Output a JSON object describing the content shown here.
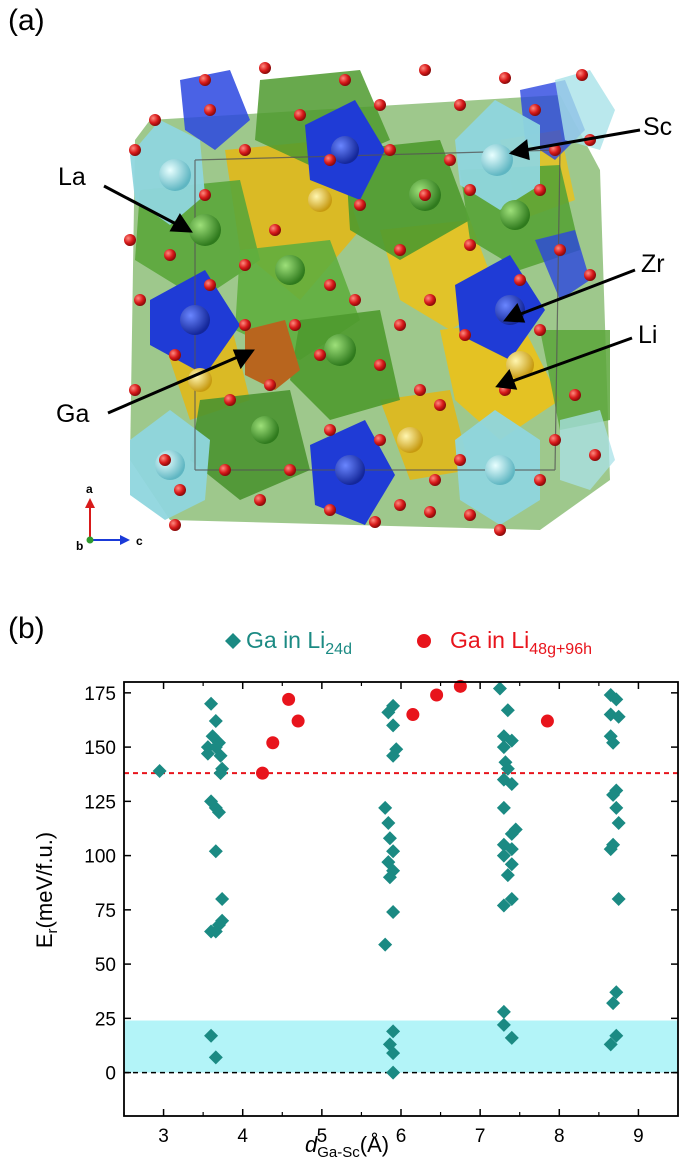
{
  "panel_a": {
    "label": "(a)",
    "atoms": {
      "la": "La",
      "sc": "Sc",
      "zr": "Zr",
      "li": "Li",
      "ga": "Ga"
    },
    "axes": {
      "a": "a",
      "b": "b",
      "c": "c"
    },
    "colors": {
      "la": "#4e9a2e",
      "sc": "#8fd6de",
      "zr": "#1f3bd6",
      "li": "#e8c21e",
      "ga": "#b8651e",
      "o": "#d81a1a"
    }
  },
  "panel_b": {
    "label": "(b)"
  },
  "chart_data": {
    "type": "scatter",
    "xlabel_main": "d",
    "xlabel_sub": "Ga-Sc",
    "xlabel_unit": "(Å)",
    "ylabel_main": "E",
    "ylabel_sub": "r",
    "ylabel_unit": "(meV/f.u.)",
    "xlim": [
      2.5,
      9.5
    ],
    "ylim": [
      -20,
      180
    ],
    "xticks": [
      3,
      4,
      5,
      6,
      7,
      8,
      9
    ],
    "yticks": [
      0,
      25,
      50,
      75,
      100,
      125,
      150,
      175
    ],
    "legend_position": "top",
    "reference_line_red": 138,
    "reference_line_black": 0,
    "shaded_band": [
      0,
      24
    ],
    "series": [
      {
        "name": "Ga in Li",
        "name_sub": "24d",
        "marker": "diamond",
        "color": "#1b8a83",
        "points": [
          [
            3.6,
            170
          ],
          [
            3.66,
            162
          ],
          [
            3.62,
            155
          ],
          [
            3.7,
            152
          ],
          [
            3.56,
            150
          ],
          [
            3.66,
            150
          ],
          [
            3.56,
            147
          ],
          [
            3.72,
            146
          ],
          [
            3.74,
            140
          ],
          [
            3.72,
            138
          ],
          [
            3.6,
            125
          ],
          [
            3.66,
            122
          ],
          [
            3.7,
            120
          ],
          [
            3.66,
            102
          ],
          [
            3.74,
            80
          ],
          [
            3.74,
            70
          ],
          [
            3.7,
            68
          ],
          [
            3.6,
            65
          ],
          [
            3.66,
            65
          ],
          [
            3.6,
            17
          ],
          [
            3.66,
            7
          ],
          [
            5.9,
            169
          ],
          [
            5.84,
            166
          ],
          [
            5.9,
            160
          ],
          [
            5.94,
            149
          ],
          [
            5.9,
            146
          ],
          [
            5.8,
            122
          ],
          [
            5.84,
            115
          ],
          [
            5.86,
            108
          ],
          [
            5.9,
            102
          ],
          [
            5.84,
            97
          ],
          [
            5.9,
            93
          ],
          [
            5.86,
            90
          ],
          [
            5.9,
            74
          ],
          [
            5.8,
            59
          ],
          [
            5.9,
            19
          ],
          [
            5.86,
            13
          ],
          [
            5.9,
            9
          ],
          [
            5.9,
            0
          ],
          [
            7.25,
            177
          ],
          [
            7.35,
            167
          ],
          [
            7.3,
            155
          ],
          [
            7.4,
            153
          ],
          [
            7.3,
            150
          ],
          [
            7.32,
            143
          ],
          [
            7.35,
            140
          ],
          [
            7.3,
            135
          ],
          [
            7.4,
            133
          ],
          [
            7.3,
            122
          ],
          [
            7.45,
            112
          ],
          [
            7.4,
            110
          ],
          [
            7.3,
            105
          ],
          [
            7.4,
            103
          ],
          [
            7.3,
            100
          ],
          [
            7.4,
            96
          ],
          [
            7.35,
            91
          ],
          [
            7.4,
            80
          ],
          [
            7.3,
            77
          ],
          [
            7.3,
            28
          ],
          [
            7.3,
            22
          ],
          [
            7.4,
            16
          ],
          [
            8.65,
            174
          ],
          [
            8.72,
            172
          ],
          [
            8.65,
            165
          ],
          [
            8.75,
            164
          ],
          [
            8.65,
            155
          ],
          [
            8.68,
            152
          ],
          [
            8.72,
            130
          ],
          [
            8.68,
            128
          ],
          [
            8.72,
            122
          ],
          [
            8.75,
            115
          ],
          [
            8.68,
            105
          ],
          [
            8.65,
            103
          ],
          [
            8.75,
            80
          ],
          [
            8.72,
            37
          ],
          [
            8.68,
            32
          ],
          [
            8.72,
            17
          ],
          [
            8.65,
            13
          ]
        ]
      },
      {
        "name": "Ga in Li",
        "name_sub": "48g+96h",
        "marker": "circle",
        "color": "#e8141c",
        "points": [
          [
            4.25,
            138
          ],
          [
            4.38,
            152
          ],
          [
            4.58,
            172
          ],
          [
            4.7,
            162
          ],
          [
            6.15,
            165
          ],
          [
            6.45,
            174
          ],
          [
            6.75,
            178
          ],
          [
            7.85,
            162
          ]
        ]
      },
      {
        "name": "",
        "marker": "diamond",
        "color": "#1b8a83",
        "points": [
          [
            2.95,
            139
          ]
        ]
      }
    ]
  }
}
